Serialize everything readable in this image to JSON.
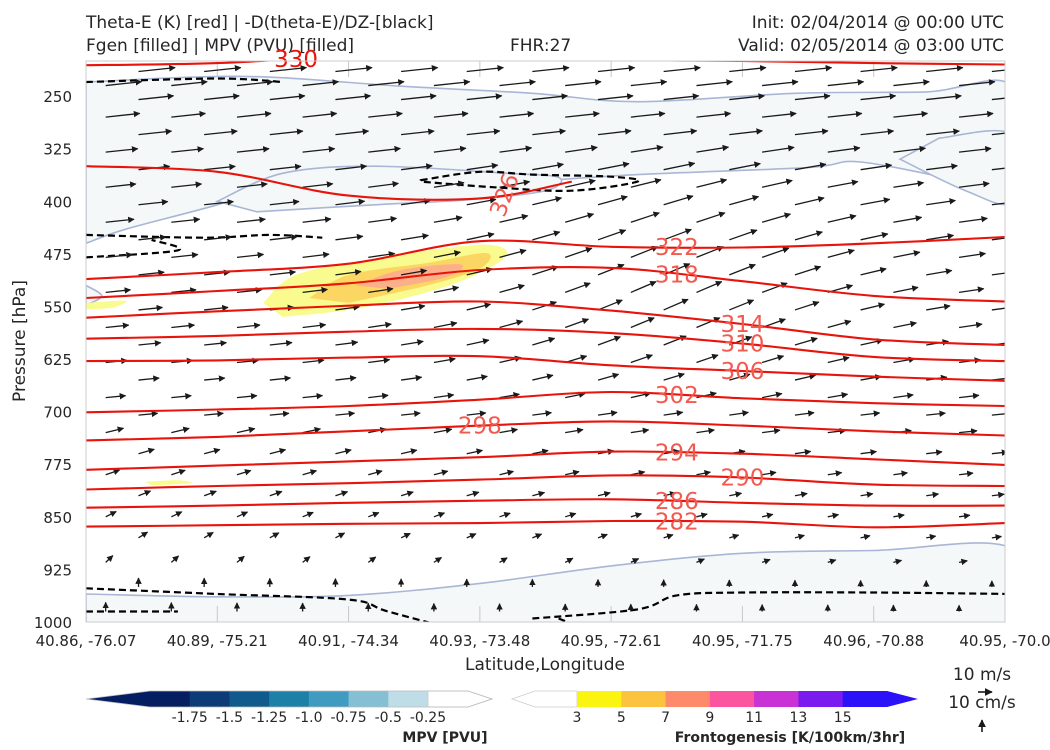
{
  "header": {
    "title_left_1": "Theta-E (K) [red] | -D(theta-E)/DZ-[black]",
    "title_left_2": "Fgen [filled] | MPV (PVU) [filled]",
    "title_center": "FHR:27",
    "title_right_1": "Init: 02/04/2014 @ 00:00 UTC",
    "title_right_2": "Valid: 02/05/2014 @ 03:00 UTC"
  },
  "colors": {
    "theta_e": "#e8140c",
    "theta_e_label": "#f25a50",
    "stability": "#000000",
    "mpv_outline": "#a9b6d5",
    "mpv_fill": "#f4f8f9",
    "fgen_3": "#fafb8e",
    "fgen_5": "#fbd662",
    "fgen_7": "#fcb08a"
  },
  "chart_data": {
    "type": "cross-section",
    "xlabel": "Latitude,Longitude",
    "ylabel": "Pressure [hPa]",
    "x_ticks": [
      "40.86, -76.07",
      "40.89, -75.21",
      "40.91, -74.34",
      "40.93, -73.48",
      "40.95, -72.61",
      "40.95, -71.75",
      "40.96, -70.88",
      "40.95, -70.0"
    ],
    "y_ticks": [
      250,
      325,
      400,
      475,
      550,
      625,
      700,
      775,
      850,
      925,
      1000
    ],
    "ylim": [
      1000,
      200
    ],
    "y_scale": "linear",
    "theta_e_contours": [
      {
        "value": 282,
        "label": "282",
        "points": [
          [
            0,
            864
          ],
          [
            1,
            862
          ],
          [
            2,
            860
          ],
          [
            3,
            859
          ],
          [
            4,
            856
          ],
          [
            5,
            857
          ],
          [
            6,
            865
          ],
          [
            7,
            859
          ]
        ]
      },
      {
        "value": 286,
        "label": "286",
        "points": [
          [
            0,
            837
          ],
          [
            1,
            834
          ],
          [
            2,
            830
          ],
          [
            3,
            827
          ],
          [
            4,
            825
          ],
          [
            5,
            830
          ],
          [
            6,
            834
          ],
          [
            7,
            834
          ]
        ]
      },
      {
        "value": 290,
        "label": "290",
        "points": [
          [
            0,
            811
          ],
          [
            1,
            806
          ],
          [
            2,
            802
          ],
          [
            3,
            797
          ],
          [
            4,
            791
          ],
          [
            5,
            794
          ],
          [
            6,
            804
          ],
          [
            7,
            806
          ]
        ]
      },
      {
        "value": 294,
        "label": "294",
        "points": [
          [
            0,
            783
          ],
          [
            1,
            777
          ],
          [
            2,
            771
          ],
          [
            3,
            765
          ],
          [
            4,
            757
          ],
          [
            5,
            760
          ],
          [
            6,
            768
          ],
          [
            7,
            776
          ]
        ]
      },
      {
        "value": 298,
        "label": "298",
        "points": [
          [
            0,
            741
          ],
          [
            1,
            736
          ],
          [
            2,
            728
          ],
          [
            3,
            720
          ],
          [
            4,
            714
          ],
          [
            5,
            720
          ],
          [
            6,
            728
          ],
          [
            7,
            734
          ]
        ]
      },
      {
        "value": 302,
        "label": "302",
        "points": [
          [
            0,
            701
          ],
          [
            1,
            697
          ],
          [
            2,
            692
          ],
          [
            3,
            683
          ],
          [
            4,
            672
          ],
          [
            5,
            681
          ],
          [
            6,
            688
          ],
          [
            7,
            692
          ]
        ]
      },
      {
        "value": 306,
        "label": "306",
        "points": [
          [
            0,
            628
          ],
          [
            1,
            627
          ],
          [
            2,
            623
          ],
          [
            3,
            621
          ],
          [
            4,
            634
          ],
          [
            5,
            642
          ],
          [
            6,
            650
          ],
          [
            7,
            656
          ]
        ]
      },
      {
        "value": 310,
        "label": "310",
        "points": [
          [
            0,
            596
          ],
          [
            1,
            592
          ],
          [
            2,
            586
          ],
          [
            3,
            582
          ],
          [
            4,
            588
          ],
          [
            5,
            603
          ],
          [
            6,
            622
          ],
          [
            7,
            628
          ]
        ]
      },
      {
        "value": 314,
        "label": "314",
        "points": [
          [
            0,
            566
          ],
          [
            1,
            557
          ],
          [
            2,
            549
          ],
          [
            3,
            543
          ],
          [
            4,
            556
          ],
          [
            5,
            575
          ],
          [
            6,
            597
          ],
          [
            7,
            605
          ]
        ]
      },
      {
        "value": 318,
        "label": "318",
        "points": [
          [
            0,
            538
          ],
          [
            1,
            528
          ],
          [
            2,
            517
          ],
          [
            3,
            498
          ],
          [
            4,
            495
          ],
          [
            5,
            514
          ],
          [
            6,
            535
          ],
          [
            7,
            543
          ]
        ]
      },
      {
        "value": 322,
        "label": "322",
        "points": [
          [
            0,
            511
          ],
          [
            1,
            501
          ],
          [
            2,
            489
          ],
          [
            3,
            457
          ],
          [
            4,
            465
          ],
          [
            5,
            466
          ],
          [
            6,
            460
          ],
          [
            7,
            451
          ]
        ]
      },
      {
        "value": 326,
        "label": "326",
        "points": [
          [
            0,
            350
          ],
          [
            1,
            358
          ],
          [
            2,
            392
          ],
          [
            3,
            396
          ],
          [
            3.7,
            372
          ]
        ]
      },
      {
        "value": 330,
        "label": "330",
        "points": [
          [
            0,
            206
          ],
          [
            1,
            203
          ],
          [
            2,
            193
          ],
          [
            3,
            190
          ],
          [
            4,
            198
          ],
          [
            5,
            200
          ],
          [
            6,
            203
          ],
          [
            7,
            205
          ]
        ]
      }
    ],
    "mpv_levels": [
      -1.75,
      -1.5,
      -1.25,
      -1.0,
      -0.75,
      -0.5,
      -0.25
    ],
    "mpv_colors": [
      "#041e61",
      "#0d3b78",
      "#105a8e",
      "#1d80a6",
      "#3f9cc0",
      "#84bfd4",
      "#bedde6",
      "#ffffff"
    ],
    "fgen_levels": [
      3,
      5,
      7,
      9,
      11,
      13,
      15
    ],
    "fgen_colors": [
      "#fbf310",
      "#fcc33f",
      "#fd8a6b",
      "#fc55a0",
      "#c932d5",
      "#7a1cf0",
      "#2b12f8"
    ],
    "fgen_maximum_approx": {
      "x": 2.4,
      "p": 510,
      "value": 7
    },
    "colorbar_mpv_label": "MPV [PVU]",
    "colorbar_mpv_ticks": [
      "-1.75",
      "-1.5",
      "-1.25",
      "-1.0",
      "-0.75",
      "-0.5",
      "-0.25"
    ],
    "colorbar_fgen_label": "Frontogenesis [K/100km/3hr]",
    "colorbar_fgen_ticks": [
      "3",
      "5",
      "7",
      "9",
      "11",
      "13",
      "15"
    ],
    "wind_reference": {
      "horizontal": "10 m/s",
      "vertical": "10 cm/s"
    }
  }
}
